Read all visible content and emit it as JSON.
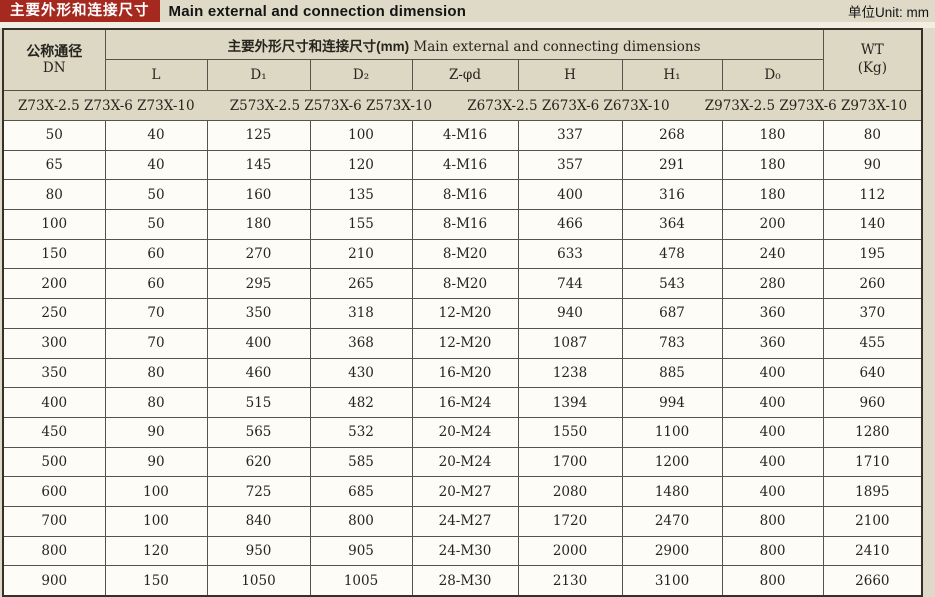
{
  "title_bar": {
    "cn_label": "主要外形和连接尺寸",
    "en_label": "Main external and connection dimension",
    "unit_label": "单位Unit: mm"
  },
  "table": {
    "header": {
      "dn_cn": "公称通径",
      "dn_en": "DN",
      "group_cn": "主要外形尺寸和连接尺寸(mm)",
      "group_en": " Main external and connecting dimensions",
      "wt": "WT",
      "wt_unit": "(Kg)"
    },
    "sub_headers": [
      "L",
      "D₁",
      "D₂",
      "Z-φd",
      "H",
      "H₁",
      "D₀"
    ],
    "models": [
      "Z73X-2.5 Z73X-6 Z73X-10",
      "Z573X-2.5 Z573X-6 Z573X-10",
      "Z673X-2.5 Z673X-6 Z673X-10",
      "Z973X-2.5 Z973X-6 Z973X-10"
    ],
    "rows": [
      [
        "50",
        "40",
        "125",
        "100",
        "4-M16",
        "337",
        "268",
        "180",
        "80"
      ],
      [
        "65",
        "40",
        "145",
        "120",
        "4-M16",
        "357",
        "291",
        "180",
        "90"
      ],
      [
        "80",
        "50",
        "160",
        "135",
        "8-M16",
        "400",
        "316",
        "180",
        "112"
      ],
      [
        "100",
        "50",
        "180",
        "155",
        "8-M16",
        "466",
        "364",
        "200",
        "140"
      ],
      [
        "150",
        "60",
        "270",
        "210",
        "8-M20",
        "633",
        "478",
        "240",
        "195"
      ],
      [
        "200",
        "60",
        "295",
        "265",
        "8-M20",
        "744",
        "543",
        "280",
        "260"
      ],
      [
        "250",
        "70",
        "350",
        "318",
        "12-M20",
        "940",
        "687",
        "360",
        "370"
      ],
      [
        "300",
        "70",
        "400",
        "368",
        "12-M20",
        "1087",
        "783",
        "360",
        "455"
      ],
      [
        "350",
        "80",
        "460",
        "430",
        "16-M20",
        "1238",
        "885",
        "400",
        "640"
      ],
      [
        "400",
        "80",
        "515",
        "482",
        "16-M24",
        "1394",
        "994",
        "400",
        "960"
      ],
      [
        "450",
        "90",
        "565",
        "532",
        "20-M24",
        "1550",
        "1100",
        "400",
        "1280"
      ],
      [
        "500",
        "90",
        "620",
        "585",
        "20-M24",
        "1700",
        "1200",
        "400",
        "1710"
      ],
      [
        "600",
        "100",
        "725",
        "685",
        "20-M27",
        "2080",
        "1480",
        "400",
        "1895"
      ],
      [
        "700",
        "100",
        "840",
        "800",
        "24-M27",
        "1720",
        "2470",
        "800",
        "2100"
      ],
      [
        "800",
        "120",
        "950",
        "905",
        "24-M30",
        "2000",
        "2900",
        "800",
        "2410"
      ],
      [
        "900",
        "150",
        "1050",
        "1005",
        "28-M30",
        "2130",
        "3100",
        "800",
        "2660"
      ]
    ]
  },
  "colors": {
    "page_bg": "#dedac7",
    "header_bg": "#ddd8c3",
    "row_bg": "#fdfcf6",
    "accent_red": "#a5291e",
    "border": "#57524a",
    "outer_border": "#35302a"
  }
}
